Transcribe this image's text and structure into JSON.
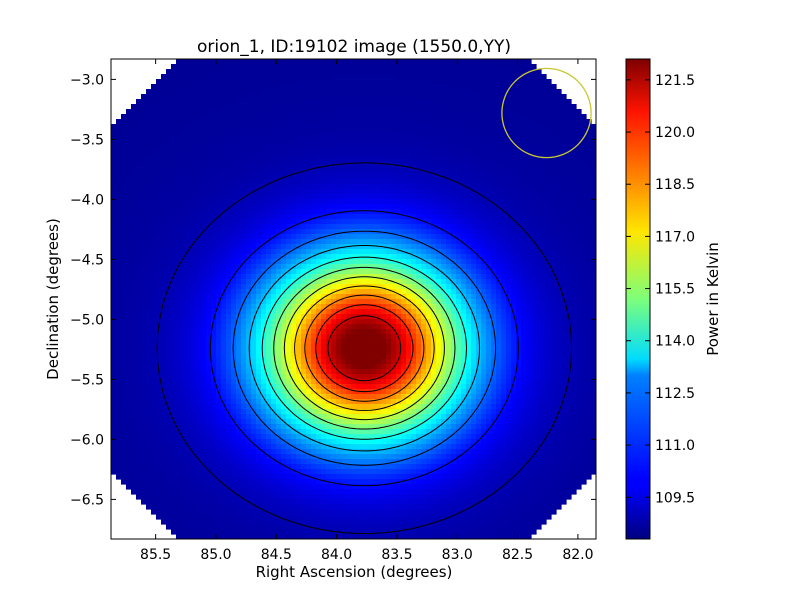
{
  "chart_data": {
    "type": "heatmap",
    "title": "orion_1, ID:19102 image (1550.0,YY)",
    "xlabel": "Right Ascension (degrees)",
    "ylabel": "Declination (degrees)",
    "xlim": [
      85.87,
      81.85
    ],
    "ylim": [
      -6.83,
      -2.83
    ],
    "x_ticks": [
      85.5,
      85.0,
      84.5,
      84.0,
      83.5,
      83.0,
      82.5,
      82.0
    ],
    "x_tick_labels": [
      "85.5",
      "85.0",
      "84.5",
      "84.0",
      "83.5",
      "83.0",
      "82.5",
      "82.0"
    ],
    "y_ticks": [
      -3.0,
      -3.5,
      -4.0,
      -4.5,
      -5.0,
      -5.5,
      -6.0,
      -6.5
    ],
    "y_tick_labels": [
      "−3.0",
      "−3.5",
      "−4.0",
      "−4.5",
      "−5.0",
      "−5.5",
      "−6.0",
      "−6.5"
    ],
    "colormap": "jet",
    "source_peak": {
      "ra": 83.77,
      "dec": -5.24,
      "value": 121.9
    },
    "background_value": 108.6,
    "contour_levels": [
      109.0,
      110.2,
      111.4,
      112.6,
      113.8,
      115.0,
      116.2,
      117.4,
      118.6,
      119.8,
      121.0
    ],
    "beam_circle": {
      "ra": 82.26,
      "dec": -3.28,
      "radius_deg": 0.37,
      "color": "#c8c832"
    },
    "colorbar": {
      "label": "Power in Kelvin",
      "vmin": 108.3,
      "vmax": 122.1,
      "ticks": [
        109.5,
        111.0,
        112.5,
        114.0,
        115.5,
        117.0,
        118.5,
        120.0,
        121.5
      ],
      "tick_labels": [
        "109.5",
        "111.0",
        "112.5",
        "114.0",
        "115.5",
        "117.0",
        "118.5",
        "120.0",
        "121.5"
      ]
    }
  }
}
